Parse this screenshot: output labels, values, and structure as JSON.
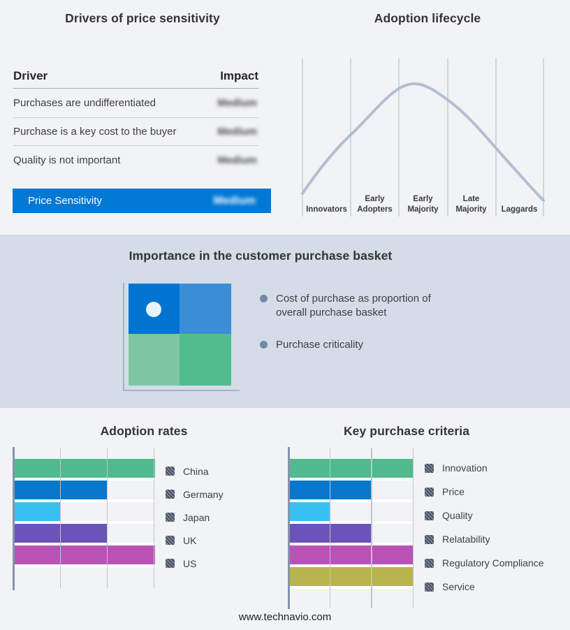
{
  "drivers_table": {
    "title": "Drivers of price sensitivity",
    "columns": {
      "driver": "Driver",
      "impact": "Impact"
    },
    "rows": [
      {
        "driver": "Purchases are undifferentiated",
        "impact": "Medium"
      },
      {
        "driver": "Purchase is a key cost to the buyer",
        "impact": "Medium"
      },
      {
        "driver": "Quality is not important",
        "impact": "Medium"
      }
    ],
    "highlight": {
      "driver": "Price Sensitivity",
      "impact": "Medium"
    }
  },
  "lifecycle": {
    "title": "Adoption lifecycle",
    "stages": [
      {
        "line1": "",
        "line2": "Innovators"
      },
      {
        "line1": "Early",
        "line2": "Adopters"
      },
      {
        "line1": "Early",
        "line2": "Majority"
      },
      {
        "line1": "Late",
        "line2": "Majority"
      },
      {
        "line1": "",
        "line2": "Laggards"
      }
    ]
  },
  "basket": {
    "title": "Importance in the customer purchase basket",
    "bullets": [
      "Cost of purchase as proportion of overall purchase basket",
      "Purchase criticality"
    ]
  },
  "chart_data": [
    {
      "type": "bar",
      "title": "Adoption rates",
      "orientation": "horizontal",
      "categories": [
        "China",
        "Germany",
        "Japan",
        "UK",
        "US"
      ],
      "values": [
        3,
        2,
        1,
        2,
        3
      ],
      "xlim": [
        0,
        3
      ],
      "grid": true,
      "legend_position": "right",
      "bar_colors": [
        "#4fbb8d",
        "#0877cb",
        "#35c2f3",
        "#6b54b7",
        "#ba52b6"
      ]
    },
    {
      "type": "bar",
      "title": "Key purchase criteria",
      "orientation": "horizontal",
      "categories": [
        "Innovation",
        "Price",
        "Quality",
        "Relatability",
        "Regulatory Compliance",
        "Service"
      ],
      "values": [
        3,
        2,
        1,
        2,
        3,
        3
      ],
      "xlim": [
        0,
        3
      ],
      "grid": true,
      "legend_position": "right",
      "bar_colors": [
        "#4fbb8d",
        "#0877cb",
        "#35c2f3",
        "#6b54b7",
        "#ba52b6",
        "#b9b44c"
      ]
    },
    {
      "type": "line",
      "title": "Adoption lifecycle",
      "categories": [
        "Innovators",
        "Early Adopters",
        "Early Majority",
        "Late Majority",
        "Laggards"
      ],
      "description": "Bell-shaped adoption curve peaking over Early Majority, no numeric axis shown"
    }
  ],
  "colors": {
    "page_background": "#f2f3f5",
    "band_background": "#d3dce7",
    "highlight_blue": "#0078d4",
    "curve": "#b2bed2",
    "quadrant_top_left": "#0074d0",
    "quadrant_top_right": "#398ed6",
    "quadrant_bottom_left": "#7ec6a2",
    "quadrant_bottom_right": "#52bb8b"
  },
  "footer": {
    "url": "www.technavio.com"
  }
}
